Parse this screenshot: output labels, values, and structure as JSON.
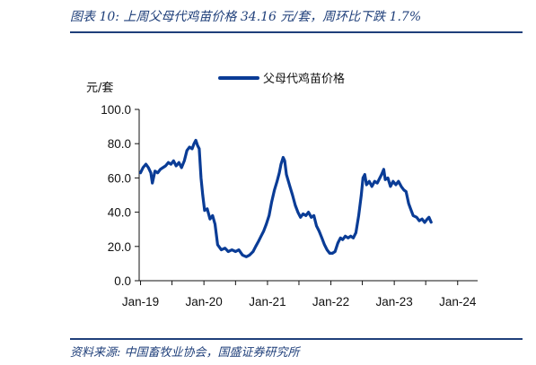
{
  "figure": {
    "title": "图表 10:  上周父母代鸡苗价格 34.16 元/套，周环比下跌 1.7%",
    "source": "资料来源:  中国畜牧业协会，国盛证券研究所"
  },
  "colors": {
    "line": "#0a3c96",
    "accent": "#1f3f7a"
  },
  "chart_data": {
    "type": "line",
    "title": "",
    "ylabel": "元/套",
    "ylim": [
      0,
      100
    ],
    "yticks": [
      "0.0",
      "20.0",
      "40.0",
      "60.0",
      "80.0",
      "100.0"
    ],
    "xticks": [
      "Jan-19",
      "Jan-20",
      "Jan-21",
      "Jan-22",
      "Jan-23",
      "Jan-24"
    ],
    "legend_position": "top-center",
    "series": [
      {
        "name": "父母代鸡苗价格",
        "points": [
          [
            "2019-01-01",
            63
          ],
          [
            "2019-01-15",
            66
          ],
          [
            "2019-02-01",
            68
          ],
          [
            "2019-02-15",
            66
          ],
          [
            "2019-03-01",
            63
          ],
          [
            "2019-03-10",
            57
          ],
          [
            "2019-03-25",
            64
          ],
          [
            "2019-04-10",
            63
          ],
          [
            "2019-04-25",
            65
          ],
          [
            "2019-05-10",
            66
          ],
          [
            "2019-05-25",
            67
          ],
          [
            "2019-06-10",
            69
          ],
          [
            "2019-06-25",
            68
          ],
          [
            "2019-07-10",
            70
          ],
          [
            "2019-07-25",
            67
          ],
          [
            "2019-08-10",
            69
          ],
          [
            "2019-08-25",
            66
          ],
          [
            "2019-09-10",
            70
          ],
          [
            "2019-09-25",
            76
          ],
          [
            "2019-10-10",
            78
          ],
          [
            "2019-10-25",
            77
          ],
          [
            "2019-11-05",
            80
          ],
          [
            "2019-11-15",
            82
          ],
          [
            "2019-11-25",
            79
          ],
          [
            "2019-12-05",
            77
          ],
          [
            "2019-12-15",
            60
          ],
          [
            "2019-12-25",
            50
          ],
          [
            "2020-01-05",
            41
          ],
          [
            "2020-01-20",
            42
          ],
          [
            "2020-02-05",
            36
          ],
          [
            "2020-02-20",
            38
          ],
          [
            "2020-03-05",
            33
          ],
          [
            "2020-03-20",
            21
          ],
          [
            "2020-04-10",
            18
          ],
          [
            "2020-05-01",
            19
          ],
          [
            "2020-05-20",
            17
          ],
          [
            "2020-06-10",
            18
          ],
          [
            "2020-07-01",
            17
          ],
          [
            "2020-07-20",
            18
          ],
          [
            "2020-08-10",
            15
          ],
          [
            "2020-09-01",
            14
          ],
          [
            "2020-09-20",
            15
          ],
          [
            "2020-10-10",
            17
          ],
          [
            "2020-10-25",
            20
          ],
          [
            "2020-11-10",
            23
          ],
          [
            "2020-11-25",
            26
          ],
          [
            "2020-12-10",
            29
          ],
          [
            "2020-12-25",
            33
          ],
          [
            "2021-01-10",
            38
          ],
          [
            "2021-01-25",
            46
          ],
          [
            "2021-02-10",
            53
          ],
          [
            "2021-02-25",
            58
          ],
          [
            "2021-03-10",
            63
          ],
          [
            "2021-03-20",
            68
          ],
          [
            "2021-04-01",
            72
          ],
          [
            "2021-04-10",
            70
          ],
          [
            "2021-04-20",
            62
          ],
          [
            "2021-05-10",
            55
          ],
          [
            "2021-05-25",
            50
          ],
          [
            "2021-06-10",
            44
          ],
          [
            "2021-06-25",
            40
          ],
          [
            "2021-07-10",
            37
          ],
          [
            "2021-07-25",
            39
          ],
          [
            "2021-08-10",
            38
          ],
          [
            "2021-08-25",
            40
          ],
          [
            "2021-09-10",
            37
          ],
          [
            "2021-09-25",
            38
          ],
          [
            "2021-10-10",
            32
          ],
          [
            "2021-10-25",
            29
          ],
          [
            "2021-11-10",
            25
          ],
          [
            "2021-11-25",
            21
          ],
          [
            "2021-12-10",
            18
          ],
          [
            "2021-12-25",
            16
          ],
          [
            "2022-01-10",
            16
          ],
          [
            "2022-01-25",
            17
          ],
          [
            "2022-02-10",
            22
          ],
          [
            "2022-02-25",
            25
          ],
          [
            "2022-03-10",
            24
          ],
          [
            "2022-03-25",
            26
          ],
          [
            "2022-04-10",
            25
          ],
          [
            "2022-04-25",
            26
          ],
          [
            "2022-05-10",
            25
          ],
          [
            "2022-05-25",
            28
          ],
          [
            "2022-06-10",
            38
          ],
          [
            "2022-06-25",
            50
          ],
          [
            "2022-07-05",
            60
          ],
          [
            "2022-07-15",
            62
          ],
          [
            "2022-07-25",
            56
          ],
          [
            "2022-08-10",
            58
          ],
          [
            "2022-08-25",
            55
          ],
          [
            "2022-09-10",
            58
          ],
          [
            "2022-09-25",
            57
          ],
          [
            "2022-10-10",
            60
          ],
          [
            "2022-10-20",
            62
          ],
          [
            "2022-11-01",
            65
          ],
          [
            "2022-11-10",
            59
          ],
          [
            "2022-11-25",
            60
          ],
          [
            "2022-12-10",
            55
          ],
          [
            "2022-12-25",
            58
          ],
          [
            "2023-01-10",
            56
          ],
          [
            "2023-01-25",
            58
          ],
          [
            "2023-02-10",
            55
          ],
          [
            "2023-02-25",
            53
          ],
          [
            "2023-03-10",
            52
          ],
          [
            "2023-03-25",
            45
          ],
          [
            "2023-04-05",
            42
          ],
          [
            "2023-04-20",
            38
          ],
          [
            "2023-05-10",
            37
          ],
          [
            "2023-05-25",
            35
          ],
          [
            "2023-06-10",
            36
          ],
          [
            "2023-06-25",
            34
          ],
          [
            "2023-07-10",
            36
          ],
          [
            "2023-07-20",
            37
          ],
          [
            "2023-08-01",
            34.16
          ]
        ]
      }
    ]
  }
}
